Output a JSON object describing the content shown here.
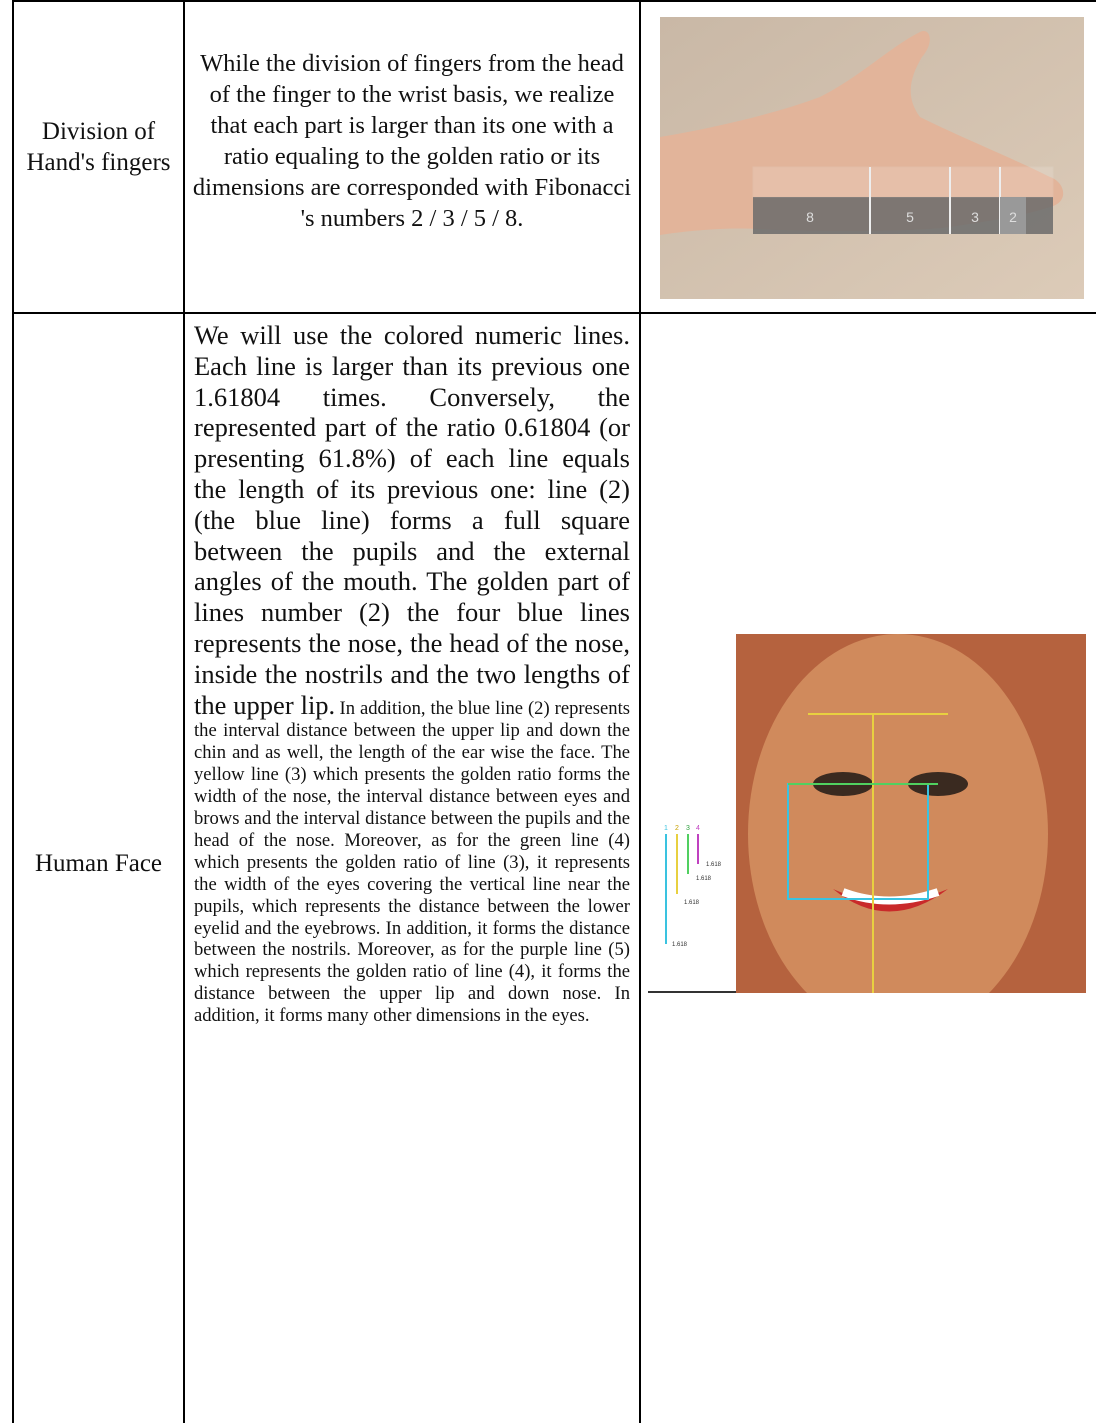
{
  "table": {
    "rows": [
      {
        "topic": "Division of Hand's fingers",
        "description": "While the division of fingers from the head of the finger to the wrist basis, we realize that each part is larger than its one with a ratio equaling to the golden ratio or its dimensions are corresponded with Fibonacci 's numbers 2 / 3 / 5 / 8.",
        "image_labels": [
          "8",
          "5",
          "3",
          "2"
        ]
      },
      {
        "topic": "Human Face",
        "description_large": "We will use the colored numeric lines. Each line is larger than its previous one 1.61804 times. Conversely, the represented part of the ratio 0.61804 (or presenting 61.8%) of each line equals the length of its previous one: line (2) (the blue line) forms a full square between the pupils and the external angles of the mouth. The golden part of lines number (2) the four blue lines represents the nose, the head of the nose, inside the nostrils and the two lengths of the upper lip.",
        "description_small": "In addition, the blue line (2) represents the interval distance between the upper lip and down the chin and as well, the length of the ear wise the face. The yellow line (3) which presents the golden ratio forms the width of the nose, the interval distance between eyes and brows and the interval  distance between the pupils and the head of the nose. Moreover, as for the green line (4) which presents the golden ratio of line (3), it represents the width of the eyes covering the vertical line near the pupils, which represents the distance between the lower eyelid and the eyebrows. In addition, it forms the distance between the nostrils. Moreover, as for the purple line (5) which represents the golden ratio of line (4), it forms the distance between the upper lip and down nose. In addition, it forms many other dimensions in the eyes.",
        "image_labels": [
          "1",
          "2",
          "3",
          "4",
          "1.618",
          "1.618",
          "1.618",
          "1.618"
        ]
      }
    ]
  }
}
